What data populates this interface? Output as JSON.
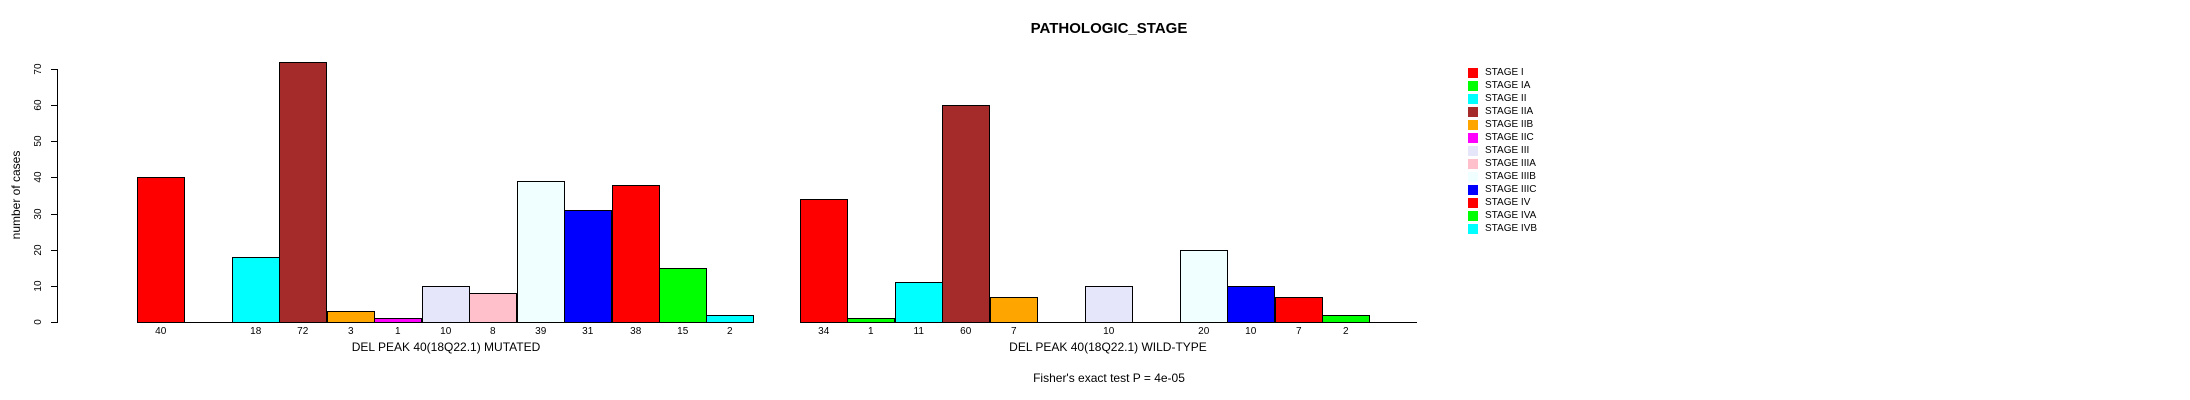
{
  "title": "PATHOLOGIC_STAGE",
  "chart_data": {
    "type": "bar",
    "title": "PATHOLOGIC_STAGE",
    "ylabel": "number of cases",
    "footnote": "Fisher's exact test P = 4e-05",
    "ylim": [
      0,
      70
    ],
    "yticks": [
      0,
      10,
      20,
      30,
      40,
      50,
      60,
      70
    ],
    "grid": false,
    "legend_position": "right",
    "categories": [
      "STAGE I",
      "STAGE IA",
      "STAGE II",
      "STAGE IIA",
      "STAGE IIB",
      "STAGE IIC",
      "STAGE III",
      "STAGE IIIA",
      "STAGE IIIB",
      "STAGE IIIC",
      "STAGE IV",
      "STAGE IVA",
      "STAGE IVB"
    ],
    "colors": [
      "#FF0000",
      "#00FF00",
      "#00FFFF",
      "#A52A2A",
      "#FFA500",
      "#FF00FF",
      "#E6E6FA",
      "#FFC0CB",
      "#F0FFFF",
      "#0000FF",
      "#FF0000",
      "#00FF00",
      "#00FFFF"
    ],
    "groups": [
      {
        "xlabel": "DEL PEAK 40(18Q22.1) MUTATED",
        "values": [
          40,
          0,
          18,
          72,
          3,
          1,
          10,
          8,
          39,
          31,
          38,
          15,
          2
        ]
      },
      {
        "xlabel": "DEL PEAK 40(18Q22.1) WILD-TYPE",
        "values": [
          34,
          1,
          11,
          60,
          7,
          0,
          10,
          0,
          20,
          10,
          7,
          2,
          0
        ]
      }
    ],
    "bar_border_color": "#000000",
    "background_color": "#FFFFFF"
  }
}
